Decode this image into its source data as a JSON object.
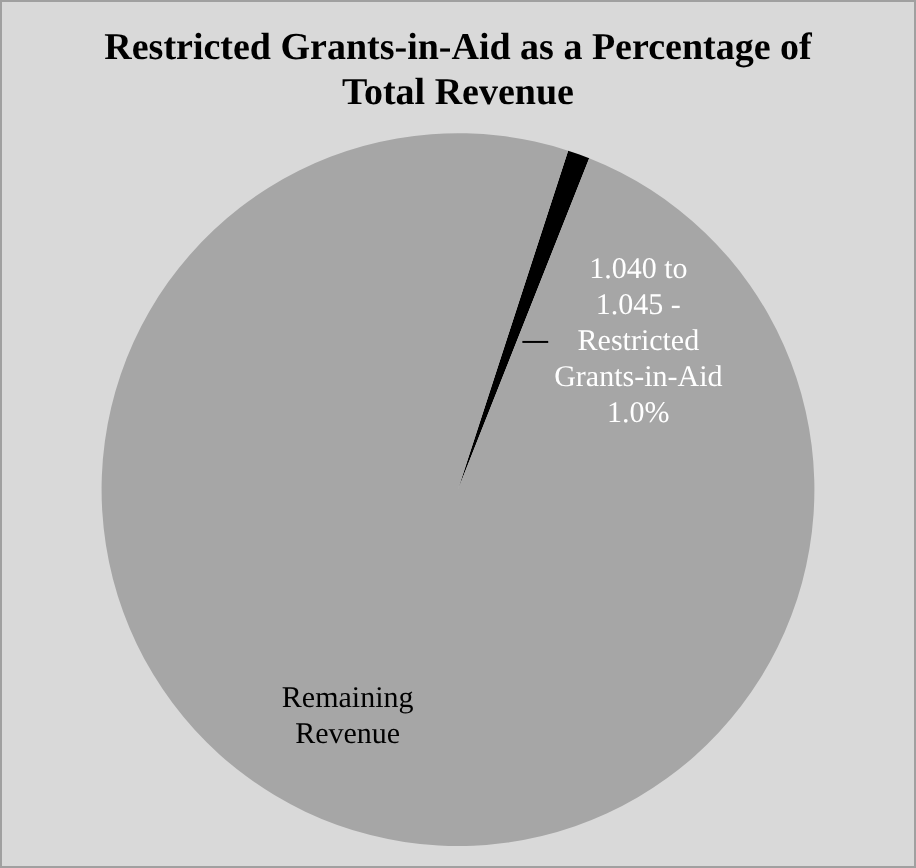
{
  "chart_data": {
    "type": "pie",
    "title": "Restricted Grants-in-Aid as a Percentage of Total Revenue",
    "categories": [
      "1.040 to 1.045 - Restricted Grants-in-Aid",
      "Remaining Revenue"
    ],
    "values": [
      1.0,
      99.0
    ],
    "colors": [
      "#000000",
      "#a6a6a6"
    ],
    "value_labels": [
      "1.0%",
      null
    ],
    "legend": false
  }
}
